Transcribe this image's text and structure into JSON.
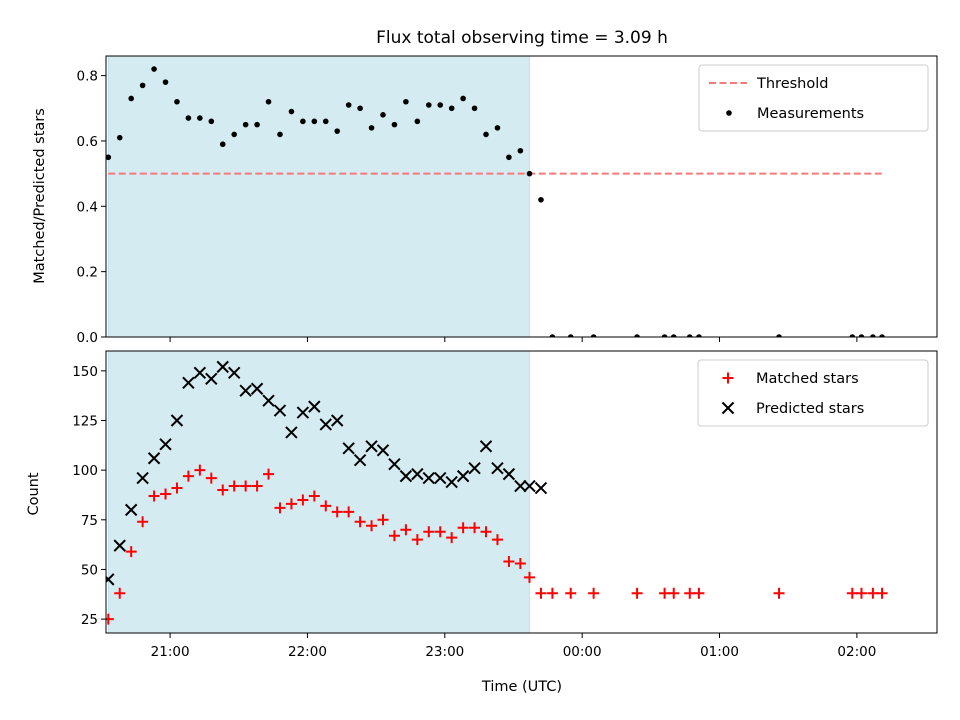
{
  "chart_data": [
    {
      "type": "scatter",
      "title": "Flux total observing time = 3.09 h",
      "xlabel": "",
      "ylabel": "Matched/Predicted stars",
      "xlim": [
        "20:32",
        "02:35"
      ],
      "ylim": [
        0,
        0.86
      ],
      "yticks": [
        0.0,
        0.2,
        0.4,
        0.6,
        0.8
      ],
      "ytick_labels": [
        "0.0",
        "0.2",
        "0.4",
        "0.6",
        "0.8"
      ],
      "shaded_interval": [
        "20:33",
        "23:37"
      ],
      "shade_color": "#d4ebf1",
      "legend_position": "top-right",
      "series": [
        {
          "name": "Threshold",
          "style": "dashed-line",
          "color": "#f47a7a",
          "x": [
            "20:33",
            "02:12"
          ],
          "y": [
            0.5,
            0.5
          ]
        },
        {
          "name": "Measurements",
          "style": "dot",
          "color": "#000000",
          "x": [
            "20:33",
            "20:38",
            "20:43",
            "20:48",
            "20:53",
            "20:58",
            "21:03",
            "21:08",
            "21:13",
            "21:18",
            "21:23",
            "21:28",
            "21:33",
            "21:38",
            "21:43",
            "21:48",
            "21:53",
            "21:58",
            "22:03",
            "22:08",
            "22:13",
            "22:18",
            "22:23",
            "22:28",
            "22:33",
            "22:38",
            "22:43",
            "22:48",
            "22:53",
            "22:58",
            "23:03",
            "23:08",
            "23:13",
            "23:18",
            "23:23",
            "23:28",
            "23:33",
            "23:37",
            "23:42",
            "23:47",
            "23:55",
            "00:05",
            "00:24",
            "00:36",
            "00:40",
            "00:47",
            "00:51",
            "01:26",
            "01:58",
            "02:02",
            "02:07",
            "02:11"
          ],
          "y": [
            0.55,
            0.61,
            0.73,
            0.77,
            0.82,
            0.78,
            0.72,
            0.67,
            0.67,
            0.66,
            0.59,
            0.62,
            0.65,
            0.65,
            0.72,
            0.62,
            0.69,
            0.66,
            0.66,
            0.66,
            0.63,
            0.71,
            0.7,
            0.64,
            0.68,
            0.65,
            0.72,
            0.66,
            0.71,
            0.71,
            0.7,
            0.73,
            0.7,
            0.62,
            0.64,
            0.55,
            0.57,
            0.5,
            0.42,
            0.0,
            0.0,
            0.0,
            0.0,
            0.0,
            0.0,
            0.0,
            0.0,
            0.0,
            0.0,
            0.0,
            0.0,
            0.0
          ]
        }
      ]
    },
    {
      "type": "scatter",
      "title": "",
      "xlabel": "Time (UTC)",
      "ylabel": "Count",
      "xlim": [
        "20:32",
        "02:35"
      ],
      "ylim": [
        18,
        160
      ],
      "yticks": [
        25,
        50,
        75,
        100,
        125,
        150
      ],
      "ytick_labels": [
        "25",
        "50",
        "75",
        "100",
        "125",
        "150"
      ],
      "xticks": [
        "21:00",
        "22:00",
        "23:00",
        "00:00",
        "01:00",
        "02:00"
      ],
      "xtick_labels": [
        "21:00",
        "22:00",
        "23:00",
        "00:00",
        "01:00",
        "02:00"
      ],
      "shaded_interval": [
        "20:33",
        "23:37"
      ],
      "shade_color": "#d4ebf1",
      "legend_position": "top-right",
      "series": [
        {
          "name": "Matched stars",
          "style": "plus",
          "color": "#ff0000",
          "x": [
            "20:33",
            "20:38",
            "20:43",
            "20:48",
            "20:53",
            "20:58",
            "21:03",
            "21:08",
            "21:13",
            "21:18",
            "21:23",
            "21:28",
            "21:33",
            "21:38",
            "21:43",
            "21:48",
            "21:53",
            "21:58",
            "22:03",
            "22:08",
            "22:13",
            "22:18",
            "22:23",
            "22:28",
            "22:33",
            "22:38",
            "22:43",
            "22:48",
            "22:53",
            "22:58",
            "23:03",
            "23:08",
            "23:13",
            "23:18",
            "23:23",
            "23:28",
            "23:33",
            "23:37",
            "23:42",
            "23:47",
            "23:55",
            "00:05",
            "00:24",
            "00:36",
            "00:40",
            "00:47",
            "00:51",
            "01:26",
            "01:58",
            "02:02",
            "02:07",
            "02:11"
          ],
          "y": [
            25,
            38,
            59,
            74,
            87,
            88,
            91,
            97,
            100,
            96,
            90,
            92,
            92,
            92,
            98,
            81,
            83,
            85,
            87,
            82,
            79,
            79,
            74,
            72,
            75,
            67,
            70,
            65,
            69,
            69,
            66,
            71,
            71,
            69,
            65,
            54,
            53,
            46,
            38,
            38,
            38,
            38,
            38,
            38,
            38,
            38,
            38,
            38,
            38,
            38,
            38,
            38
          ]
        },
        {
          "name": "Predicted stars",
          "style": "x",
          "color": "#000000",
          "x": [
            "20:33",
            "20:38",
            "20:43",
            "20:48",
            "20:53",
            "20:58",
            "21:03",
            "21:08",
            "21:13",
            "21:18",
            "21:23",
            "21:28",
            "21:33",
            "21:38",
            "21:43",
            "21:48",
            "21:53",
            "21:58",
            "22:03",
            "22:08",
            "22:13",
            "22:18",
            "22:23",
            "22:28",
            "22:33",
            "22:38",
            "22:43",
            "22:48",
            "22:53",
            "22:58",
            "23:03",
            "23:08",
            "23:13",
            "23:18",
            "23:23",
            "23:28",
            "23:33",
            "23:37",
            "23:42"
          ],
          "y": [
            45,
            62,
            80,
            96,
            106,
            113,
            125,
            144,
            149,
            146,
            152,
            149,
            140,
            141,
            135,
            130,
            119,
            129,
            132,
            123,
            125,
            111,
            105,
            112,
            110,
            103,
            97,
            98,
            96,
            96,
            94,
            97,
            101,
            112,
            101,
            98,
            92,
            92,
            91
          ]
        }
      ]
    }
  ]
}
